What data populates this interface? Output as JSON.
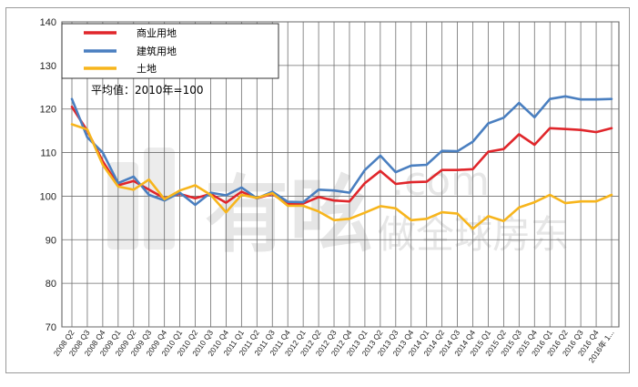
{
  "chart_data": {
    "type": "line",
    "title": "",
    "xlabel": "",
    "ylabel": "",
    "ylim": [
      70,
      140
    ],
    "yticks": [
      70,
      80,
      90,
      100,
      110,
      120,
      130,
      140
    ],
    "grid": true,
    "legend_position": "top-left",
    "note": "平均值：2010年=100",
    "categories": [
      "2008 Q2",
      "2008 Q3",
      "2008 Q4",
      "2009 Q1",
      "2009 Q2",
      "2009 Q3",
      "2009 Q4",
      "2010 Q1",
      "2010 Q2",
      "2010 Q3",
      "2010 Q4",
      "2011 Q1",
      "2011 Q2",
      "2011 Q3",
      "2011 Q4",
      "2012 Q1",
      "2012 Q2",
      "2012 Q3",
      "2012 Q4",
      "2013 Q1",
      "2013 Q2",
      "2013 Q3",
      "2013 Q4",
      "2014 Q1",
      "2014 Q2",
      "2014 Q3",
      "2014 Q4",
      "2015 Q1",
      "2015 Q2",
      "2015 Q3",
      "2015 Q4",
      "2016 Q1",
      "2016 Q2",
      "2016 Q3",
      "2016 Q4",
      "2016年 1..."
    ],
    "series": [
      {
        "name": "商业用地",
        "color": "#e0262b",
        "values": [
          120.5,
          115,
          108,
          102.5,
          103.5,
          101.5,
          99.5,
          100.5,
          99.5,
          100.5,
          98.5,
          101,
          99.5,
          100.5,
          98.2,
          98.3,
          99.8,
          99,
          98.8,
          103,
          105.8,
          102.8,
          103.2,
          103.3,
          106,
          106,
          106.2,
          110.2,
          110.8,
          114.2,
          111.8,
          115.6,
          115.4,
          115.2,
          114.7,
          115.6
        ]
      },
      {
        "name": "建筑用地",
        "color": "#4a7fc0",
        "values": [
          122.3,
          113.5,
          110,
          103,
          104.5,
          100.3,
          99,
          100.8,
          98,
          100.8,
          100.2,
          102,
          99.5,
          101,
          98.7,
          98.6,
          101.5,
          101.3,
          100.8,
          106,
          109.3,
          105.5,
          107,
          107.2,
          110.4,
          110.3,
          112.5,
          116.7,
          118,
          121.4,
          118.1,
          122.3,
          122.9,
          122.2,
          122.2,
          122.3
        ]
      },
      {
        "name": "土地",
        "color": "#f7b51c",
        "values": [
          116.5,
          115.3,
          107.2,
          102.2,
          101.5,
          103.8,
          99.3,
          101.3,
          102.5,
          100.3,
          96.3,
          100.3,
          99.6,
          100.7,
          97.8,
          97.8,
          96.5,
          94.5,
          94.8,
          96.2,
          97.7,
          97.2,
          94.5,
          94.8,
          96.3,
          96,
          92.5,
          95.4,
          94.3,
          97.4,
          98.6,
          100.3,
          98.4,
          98.8,
          98.8,
          100.3
        ]
      }
    ]
  }
}
